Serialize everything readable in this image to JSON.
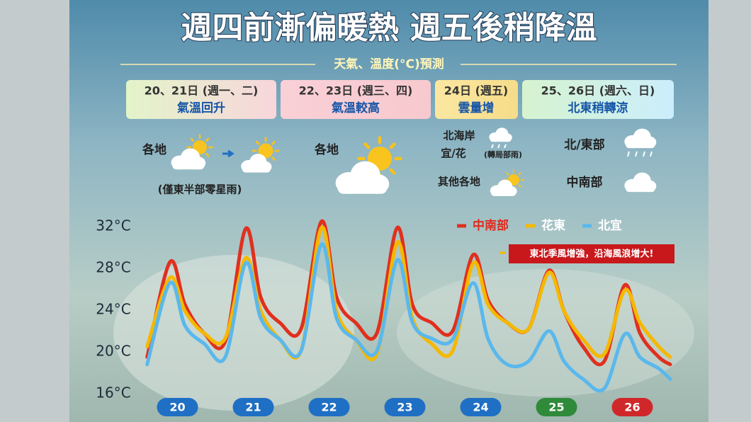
{
  "title": "週四前漸偏暖熱  週五後稍降溫",
  "subtitle": "天氣、溫度(°C)預測",
  "periods": [
    {
      "date": "20、21日 (週一、二)",
      "desc": "氣溫回升"
    },
    {
      "date": "22、23日 (週三、四)",
      "desc": "氣溫較高"
    },
    {
      "date": "24日 (週五)",
      "desc": "雲量增"
    },
    {
      "date": "25、26日 (週六、日)",
      "desc": "北東稍轉涼"
    }
  ],
  "notes": {
    "p1_place": "各地",
    "p1_note": "(僅東半部零星雨)",
    "p2_place": "各地",
    "p3_place_a": "北海岸",
    "p3_place_b": "宜/花",
    "p3_note": "(轉局部雨)",
    "p3_place_c": "其他各地",
    "p4_place_a": "北/東部",
    "p4_place_b": "中南部"
  },
  "chart_data": {
    "type": "line",
    "annotation": "東北季風增強，沿海風浪增大!",
    "day_labels": [
      "20",
      "21",
      "22",
      "23",
      "24",
      "25",
      "26"
    ],
    "day_colors": [
      "#1f6fc4",
      "#1f6fc4",
      "#1f6fc4",
      "#1f6fc4",
      "#1f6fc4",
      "#2f8a3a",
      "#d0282a"
    ],
    "x": [
      20.1,
      20.4,
      20.6,
      20.85,
      21.13,
      21.4,
      21.6,
      21.85,
      22.13,
      22.4,
      22.6,
      22.85,
      23.13,
      23.4,
      23.6,
      23.85,
      24.13,
      24.4,
      24.6,
      24.85,
      25.13,
      25.4,
      25.6,
      25.85,
      26.13,
      26.4,
      26.6,
      26.85,
      27
    ],
    "xlim": [
      20,
      27
    ],
    "ylim": [
      16,
      32
    ],
    "yticks": [
      {
        "value": 16,
        "label": "16°C"
      },
      {
        "value": 20,
        "label": "20°C"
      },
      {
        "value": 24,
        "label": "24°C"
      },
      {
        "value": 28,
        "label": "28°C"
      },
      {
        "value": 32,
        "label": "32°C"
      }
    ],
    "grid": false,
    "series": [
      {
        "name": "中南部",
        "color": "#e0301e",
        "values": [
          19.5,
          28.6,
          24.5,
          21.8,
          21,
          31.8,
          25.2,
          22.8,
          22.2,
          32.5,
          25.2,
          22.8,
          21.8,
          31.9,
          24.5,
          22.8,
          22,
          29.3,
          24.9,
          22.8,
          22.2,
          27.8,
          23.9,
          20.5,
          19.1,
          26.4,
          21.8,
          19.5,
          18.8
        ]
      },
      {
        "name": "花東",
        "color": "#f5b800",
        "values": [
          20.5,
          27.1,
          23.9,
          21.8,
          21.3,
          29,
          23.9,
          21.2,
          20.1,
          31.9,
          23.9,
          21.2,
          19.8,
          30.5,
          23.2,
          20.8,
          20.1,
          28.5,
          24.5,
          22.8,
          22.2,
          27.6,
          23.9,
          21.2,
          19.8,
          25.9,
          22.8,
          20.5,
          19.5
        ]
      },
      {
        "name": "北宜",
        "color": "#5ab8ec",
        "values": [
          18.8,
          26.6,
          22.5,
          20.8,
          19.5,
          28.5,
          23.2,
          21.2,
          20.1,
          30.3,
          23.2,
          21.2,
          20.1,
          28.8,
          22.8,
          21.3,
          21.2,
          26.6,
          21.2,
          18.8,
          19.1,
          22,
          19.1,
          17.4,
          16.5,
          21.7,
          19.5,
          18.4,
          17.4
        ]
      }
    ]
  }
}
